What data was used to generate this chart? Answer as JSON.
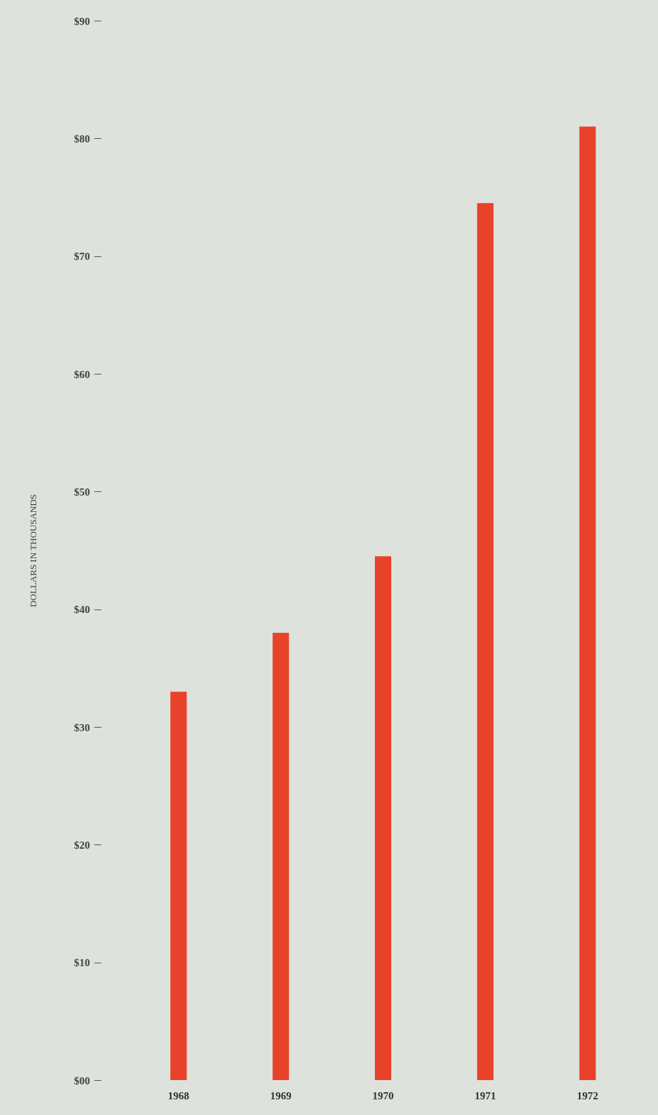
{
  "chart_data": {
    "type": "bar",
    "ylabel": "DOLLARS IN THOUSANDS",
    "categories": [
      "1968",
      "1969",
      "1970",
      "1971",
      "1972"
    ],
    "values": [
      33,
      38,
      44.5,
      74.5,
      81
    ],
    "color": "#e8432a",
    "ylim": [
      0,
      90
    ],
    "yticks": [
      {
        "value": 0,
        "label": "$00"
      },
      {
        "value": 10,
        "label": "$10"
      },
      {
        "value": 20,
        "label": "$20"
      },
      {
        "value": 30,
        "label": "$30"
      },
      {
        "value": 40,
        "label": "$40"
      },
      {
        "value": 50,
        "label": "$50"
      },
      {
        "value": 60,
        "label": "$60"
      },
      {
        "value": 70,
        "label": "$70"
      },
      {
        "value": 80,
        "label": "$80"
      },
      {
        "value": 90,
        "label": "$90"
      }
    ]
  }
}
